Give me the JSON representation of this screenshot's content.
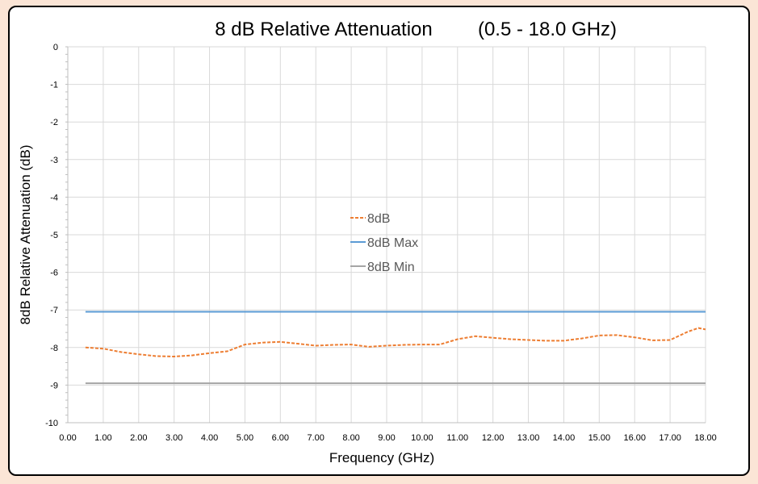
{
  "chart_data": {
    "type": "line",
    "title": "8 dB Relative Attenuation",
    "title_range": "(0.5 - 18.0 GHz)",
    "xlabel": "Frequency (GHz)",
    "ylabel": "8dB Relative Attenuation (dB)",
    "xlim": [
      0,
      18
    ],
    "ylim": [
      -10,
      0
    ],
    "x_ticks": [
      "0.00",
      "1.00",
      "2.00",
      "3.00",
      "4.00",
      "5.00",
      "6.00",
      "7.00",
      "8.00",
      "9.00",
      "10.00",
      "11.00",
      "12.00",
      "13.00",
      "14.00",
      "15.00",
      "16.00",
      "17.00",
      "18.00"
    ],
    "y_ticks": [
      "0",
      "-1",
      "-2",
      "-3",
      "-4",
      "-5",
      "-6",
      "-7",
      "-8",
      "-9",
      "-10"
    ],
    "grid": true,
    "legend_position": "center",
    "series": [
      {
        "name": "8dB",
        "color": "#ed7d31",
        "dash": true,
        "x": [
          0.5,
          1.0,
          1.5,
          2.0,
          2.5,
          3.0,
          3.5,
          4.0,
          4.5,
          5.0,
          5.5,
          6.0,
          6.5,
          7.0,
          7.5,
          8.0,
          8.5,
          9.0,
          9.5,
          10.0,
          10.5,
          11.0,
          11.5,
          12.0,
          12.5,
          13.0,
          13.5,
          14.0,
          14.5,
          15.0,
          15.5,
          16.0,
          16.5,
          17.0,
          17.5,
          17.8,
          18.0
        ],
        "y": [
          -8.0,
          -8.03,
          -8.12,
          -8.18,
          -8.23,
          -8.24,
          -8.21,
          -8.15,
          -8.1,
          -7.92,
          -7.87,
          -7.85,
          -7.9,
          -7.95,
          -7.93,
          -7.92,
          -7.98,
          -7.95,
          -7.93,
          -7.92,
          -7.92,
          -7.78,
          -7.7,
          -7.74,
          -7.78,
          -7.8,
          -7.82,
          -7.82,
          -7.76,
          -7.68,
          -7.67,
          -7.73,
          -7.81,
          -7.8,
          -7.58,
          -7.48,
          -7.52
        ]
      },
      {
        "name": "8dB Max",
        "color": "#5b9bd5",
        "dash": false,
        "x": [
          0.5,
          18.0
        ],
        "y": [
          -7.05,
          -7.05
        ]
      },
      {
        "name": "8dB Min",
        "color": "#a5a5a5",
        "dash": false,
        "x": [
          0.5,
          18.0
        ],
        "y": [
          -8.95,
          -8.95
        ]
      }
    ]
  }
}
